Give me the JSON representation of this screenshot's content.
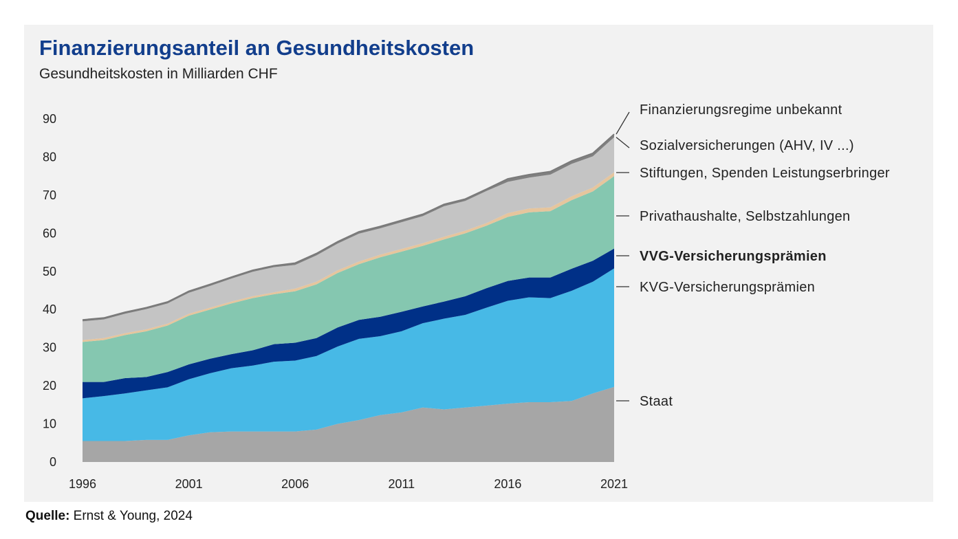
{
  "chart_data": {
    "type": "area",
    "stacked": true,
    "title": "Finanzierungsanteil an Gesundheitskosten",
    "subtitle": "Gesundheitskosten in Milliarden CHF",
    "xlabel": "",
    "ylabel": "",
    "x": [
      1996,
      1997,
      1998,
      1999,
      2000,
      2001,
      2002,
      2003,
      2004,
      2005,
      2006,
      2007,
      2008,
      2009,
      2010,
      2011,
      2012,
      2013,
      2014,
      2015,
      2016,
      2017,
      2018,
      2019,
      2020,
      2021
    ],
    "xticks": [
      "1996",
      "2001",
      "2006",
      "2011",
      "2016",
      "2021"
    ],
    "yticks": [
      "0",
      "10",
      "20",
      "30",
      "40",
      "50",
      "60",
      "70",
      "80",
      "90"
    ],
    "ylim": [
      0,
      90
    ],
    "grid": false,
    "legend_placement": "right (direct labels)",
    "series": [
      {
        "name": "Staat",
        "color": "#a6a6a6",
        "highlight": false,
        "values": [
          5.5,
          5.5,
          5.5,
          5.8,
          5.8,
          7.0,
          7.8,
          8.0,
          8.0,
          8.0,
          8.0,
          8.5,
          10.0,
          11.0,
          12.3,
          13.0,
          14.3,
          13.8,
          14.3,
          14.8,
          15.3,
          15.7,
          15.7,
          16.0,
          18.0,
          19.7
        ]
      },
      {
        "name": "KVG-Versicherungsprämien",
        "color": "#47b9e6",
        "highlight": false,
        "values": [
          11.2,
          11.8,
          12.5,
          13.0,
          13.8,
          14.7,
          15.5,
          16.6,
          17.3,
          18.3,
          18.6,
          19.3,
          20.3,
          21.3,
          20.7,
          21.3,
          22.1,
          23.8,
          24.3,
          25.7,
          27.0,
          27.5,
          27.3,
          28.9,
          29.3,
          31.1
        ]
      },
      {
        "name": "VVG-Versicherungsprämien",
        "color": "#003087",
        "highlight": true,
        "values": [
          4.3,
          3.7,
          4.0,
          3.5,
          4.0,
          3.9,
          3.8,
          3.7,
          4.0,
          4.6,
          4.7,
          4.7,
          5.0,
          5.0,
          5.1,
          5.1,
          4.4,
          4.5,
          4.9,
          5.1,
          5.2,
          5.2,
          5.4,
          5.8,
          5.5,
          5.2
        ]
      },
      {
        "name": "Privathaushalte, Selbstzahlungen",
        "color": "#85c7b0",
        "highlight": false,
        "values": [
          10.5,
          11.0,
          11.3,
          12.0,
          12.2,
          12.8,
          12.9,
          13.3,
          13.7,
          13.1,
          13.5,
          14.1,
          14.3,
          14.6,
          15.6,
          15.8,
          15.9,
          16.3,
          16.5,
          16.4,
          16.8,
          17.1,
          17.4,
          18.0,
          18.2,
          19.0
        ]
      },
      {
        "name": "Stiftungen, Spenden Leistungserbringer",
        "color": "#e6c59d",
        "highlight": false,
        "values": [
          0.5,
          0.5,
          0.5,
          0.5,
          0.5,
          0.5,
          0.5,
          0.5,
          0.5,
          0.5,
          0.7,
          0.7,
          0.7,
          0.7,
          0.7,
          0.7,
          0.7,
          0.7,
          0.7,
          0.7,
          1.0,
          1.0,
          1.0,
          1.0,
          1.0,
          1.0
        ]
      },
      {
        "name": "Sozialversicherungen (AHV, IV ...)",
        "color": "#c4c4c4",
        "highlight": false,
        "values": [
          4.9,
          4.9,
          5.1,
          5.3,
          5.3,
          5.5,
          5.7,
          6.0,
          6.4,
          6.6,
          6.2,
          6.9,
          7.0,
          7.3,
          6.9,
          7.0,
          7.1,
          8.0,
          7.8,
          8.4,
          8.2,
          8.1,
          8.6,
          8.5,
          8.2,
          9.2
        ]
      },
      {
        "name": "Finanzierungsregime  unbekannt",
        "color": "#808080",
        "highlight": false,
        "values": [
          0.4,
          0.4,
          0.4,
          0.4,
          0.4,
          0.4,
          0.4,
          0.4,
          0.4,
          0.4,
          0.5,
          0.5,
          0.5,
          0.5,
          0.5,
          0.5,
          0.5,
          0.5,
          0.5,
          0.5,
          0.8,
          0.8,
          0.8,
          0.8,
          0.8,
          0.8
        ]
      }
    ]
  },
  "source": {
    "label": "Quelle:",
    "text": " Ernst & Young, 2024"
  },
  "colors": {
    "title": "#123e8c",
    "highlight_label": "#123e8c",
    "panel_background": "#f2f2f2"
  }
}
